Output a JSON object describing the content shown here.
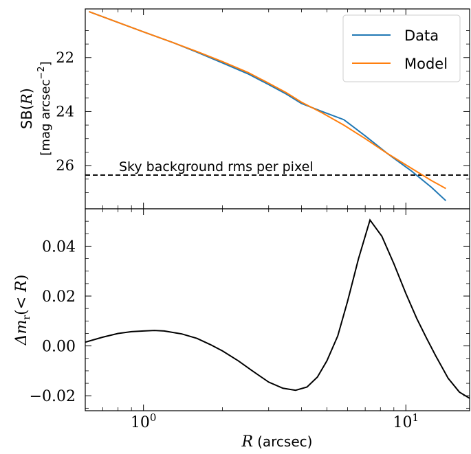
{
  "chart_data": [
    {
      "type": "line",
      "panel": "top",
      "ylabel_line1": "SB(",
      "ylabel_var": "R",
      "ylabel_line1_end": ")",
      "ylabel_line2": "[mag arcsec",
      "ylabel_exp": "−2",
      "ylabel_line2_end": "]",
      "xscale": "log",
      "xlim": [
        0.6,
        17.5
      ],
      "ylim": [
        27.6,
        20.2
      ],
      "y_inverted": true,
      "yticks": [
        22,
        24,
        26
      ],
      "ytick_labels": [
        "22",
        "24",
        "26"
      ],
      "legend_position": "top-right",
      "series": [
        {
          "name": "Data",
          "color": "#1f77b4",
          "x": [
            0.62,
            0.8,
            1.0,
            1.3,
            1.6,
            2.0,
            2.5,
            3.0,
            3.5,
            4.0,
            4.8,
            5.8,
            7.0,
            8.5,
            10.5,
            12.5,
            14.2
          ],
          "y": [
            20.3,
            20.7,
            21.05,
            21.45,
            21.8,
            22.2,
            22.6,
            23.0,
            23.35,
            23.7,
            24.0,
            24.3,
            24.9,
            25.55,
            26.2,
            26.8,
            27.3
          ]
        },
        {
          "name": "Model",
          "color": "#ff7f0e",
          "x": [
            0.62,
            0.8,
            1.0,
            1.3,
            1.6,
            2.0,
            2.5,
            3.0,
            3.5,
            4.0,
            4.8,
            5.8,
            7.0,
            8.5,
            10.5,
            12.5,
            14.2
          ],
          "y": [
            20.3,
            20.7,
            21.05,
            21.45,
            21.78,
            22.15,
            22.55,
            22.95,
            23.3,
            23.65,
            24.05,
            24.5,
            25.0,
            25.55,
            26.1,
            26.55,
            26.85
          ]
        }
      ],
      "hline": {
        "y": 26.35,
        "style": "dashed",
        "label": "Sky background rms per pixel"
      }
    },
    {
      "type": "line",
      "panel": "bottom",
      "xlabel_var": "R",
      "xlabel_unit": "(arcsec)",
      "ylabel_prefix": "Δm",
      "ylabel_sub": "r",
      "ylabel_mid": "(< ",
      "ylabel_var": "R",
      "ylabel_end": ")",
      "xscale": "log",
      "xlim": [
        0.6,
        17.5
      ],
      "ylim": [
        -0.026,
        0.055
      ],
      "yticks": [
        -0.02,
        0.0,
        0.02,
        0.04
      ],
      "ytick_labels": [
        "−0.02",
        "0.00",
        "0.02",
        "0.04"
      ],
      "xtick_labels": [
        {
          "value": 1,
          "base": "10",
          "exp": "0"
        },
        {
          "value": 10,
          "base": "10",
          "exp": "1"
        }
      ],
      "series": [
        {
          "color": "#000000",
          "x": [
            0.6,
            0.7,
            0.8,
            0.9,
            1.0,
            1.1,
            1.2,
            1.4,
            1.6,
            1.8,
            2.0,
            2.3,
            2.6,
            3.0,
            3.4,
            3.8,
            4.2,
            4.6,
            5.0,
            5.5,
            6.0,
            6.6,
            7.3,
            8.1,
            9.0,
            10.0,
            11.0,
            12.0,
            13.0,
            14.5,
            16.0,
            17.5
          ],
          "y": [
            0.0015,
            0.0035,
            0.005,
            0.0057,
            0.006,
            0.0062,
            0.006,
            0.0048,
            0.003,
            0.0005,
            -0.002,
            -0.006,
            -0.01,
            -0.0145,
            -0.017,
            -0.0178,
            -0.0165,
            -0.0125,
            -0.006,
            0.004,
            0.018,
            0.035,
            0.0505,
            0.044,
            0.033,
            0.021,
            0.011,
            0.003,
            -0.004,
            -0.013,
            -0.0185,
            -0.021
          ]
        }
      ]
    }
  ]
}
